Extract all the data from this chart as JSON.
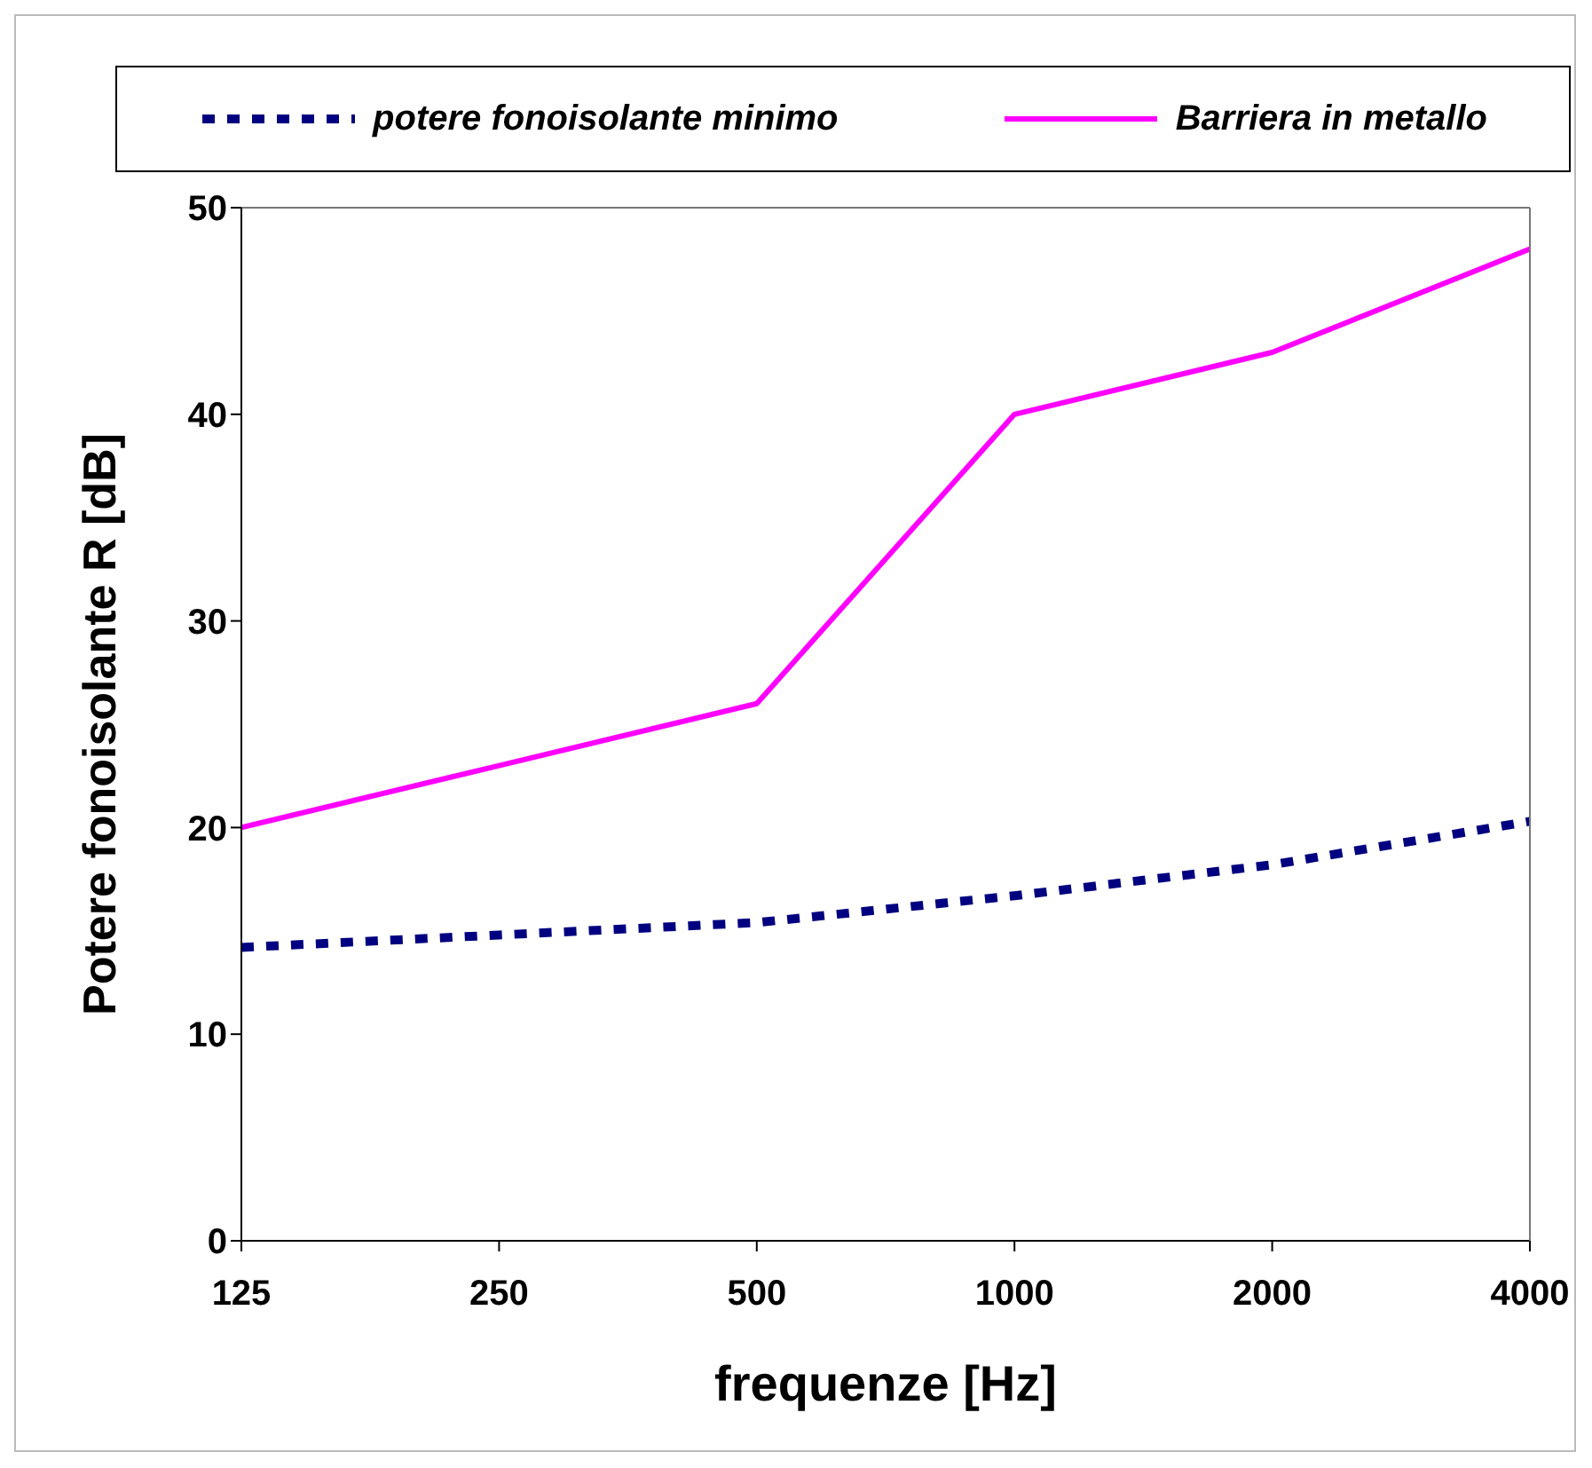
{
  "chart_data": {
    "type": "line",
    "xlabel": "frequenze [Hz]",
    "ylabel": "Potere fonoisolante R [dB]",
    "categories": [
      "125",
      "250",
      "500",
      "1000",
      "2000",
      "4000"
    ],
    "ylim": [
      0,
      50
    ],
    "yticks": [
      0,
      10,
      20,
      30,
      40,
      50
    ],
    "grid": false,
    "legend": "top",
    "marker": "none",
    "series": [
      {
        "name": "potere fonoisolante minimo",
        "color": "#000080",
        "line_style": "dashed",
        "values": [
          14.2,
          14.8,
          15.4,
          16.7,
          18.2,
          20.3
        ]
      },
      {
        "name": "Barriera in metallo",
        "color": "#ff00ff",
        "line_style": "solid",
        "values": [
          20,
          23,
          26,
          40,
          43,
          48
        ]
      }
    ]
  }
}
